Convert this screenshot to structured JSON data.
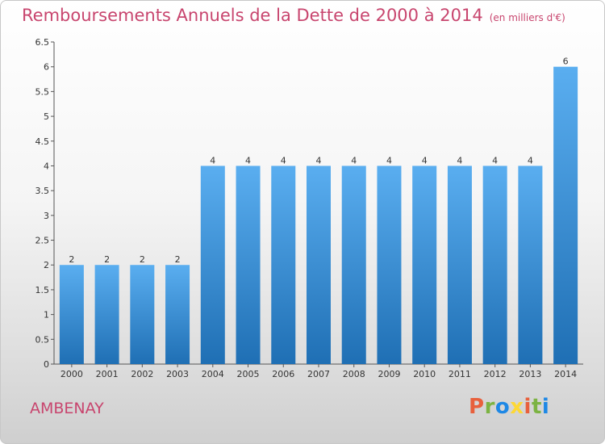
{
  "header": {
    "title": "Remboursements Annuels de la Dette de 2000 à 2014",
    "unit": "(en milliers d'€)"
  },
  "commune": "AMBENAY",
  "logo": {
    "text": "Proxiti",
    "colors": [
      "#e8603c",
      "#7cb342",
      "#1e88e5",
      "#fdd835"
    ]
  },
  "chart_data": {
    "type": "bar",
    "categories": [
      "2000",
      "2001",
      "2002",
      "2003",
      "2004",
      "2005",
      "2006",
      "2007",
      "2008",
      "2009",
      "2010",
      "2011",
      "2012",
      "2013",
      "2014"
    ],
    "values": [
      2,
      2,
      2,
      2,
      4,
      4,
      4,
      4,
      4,
      4,
      4,
      4,
      4,
      4,
      6
    ],
    "data_labels": [
      "2",
      "2",
      "2",
      "2",
      "4",
      "4",
      "4",
      "4",
      "4",
      "4",
      "4",
      "4",
      "4",
      "4",
      "6"
    ],
    "yticks": [
      "0",
      "0.5",
      "1",
      "1.5",
      "2",
      "2.5",
      "3",
      "3.5",
      "4",
      "4.5",
      "5",
      "5.5",
      "6",
      "6.5"
    ],
    "ylim": [
      0,
      6.5
    ],
    "xlabel": "",
    "ylabel": "",
    "grid": false,
    "legend": "none",
    "bar_color": "#3d8fd8"
  }
}
